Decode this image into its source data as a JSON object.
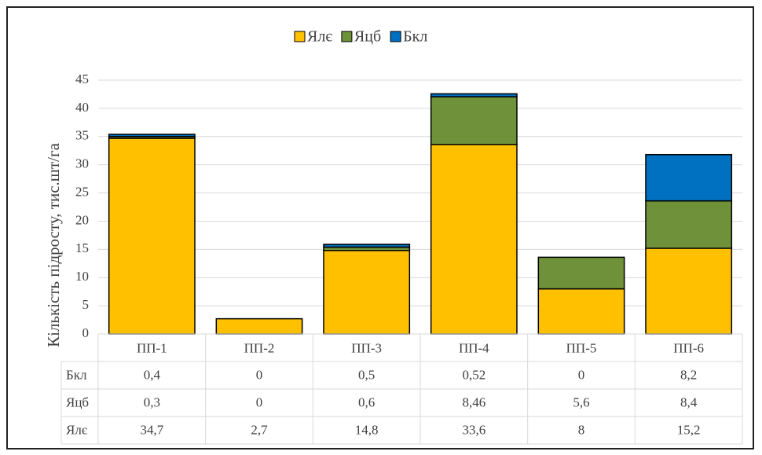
{
  "chart_data": {
    "type": "bar",
    "stacked": true,
    "y_label": "Кількість підросту, тис.шт/га",
    "categories": [
      "ПП-1",
      "ПП-2",
      "ПП-3",
      "ПП-4",
      "ПП-5",
      "ПП-6"
    ],
    "series": [
      {
        "name": "Ялє",
        "color": "#ffc000",
        "values": [
          34.7,
          2.7,
          14.8,
          33.6,
          8,
          15.2
        ],
        "value_labels": [
          "34,7",
          "2,7",
          "14,8",
          "33,6",
          "8",
          "15,2"
        ]
      },
      {
        "name": "Яцб",
        "color": "#6f9139",
        "values": [
          0.3,
          0,
          0.6,
          8.46,
          5.6,
          8.4
        ],
        "value_labels": [
          "0,3",
          "0",
          "0,6",
          "8,46",
          "5,6",
          "8,4"
        ]
      },
      {
        "name": "Бкл",
        "color": "#0070c0",
        "values": [
          0.4,
          0,
          0.5,
          0.52,
          0,
          8.2
        ],
        "value_labels": [
          "0,4",
          "0",
          "0,5",
          "0,52",
          "0",
          "8,2"
        ]
      }
    ],
    "ylim": [
      0,
      45
    ],
    "yticks": [
      0,
      5,
      10,
      15,
      20,
      25,
      30,
      35,
      40,
      45
    ],
    "grid": true,
    "legend": "top",
    "data_table": true
  }
}
